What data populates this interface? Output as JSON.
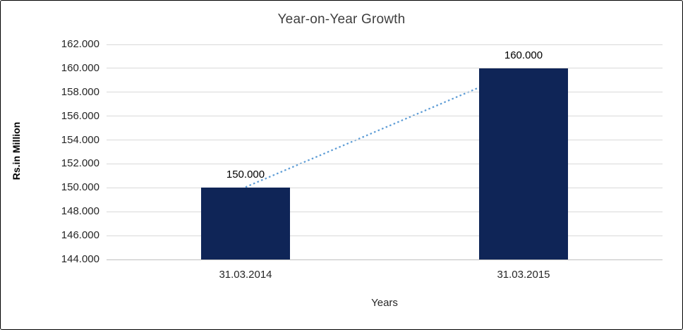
{
  "chart_data": {
    "type": "bar",
    "title": "Year-on-Year Growth",
    "xlabel": "Years",
    "ylabel": "Rs.in Million",
    "categories": [
      "31.03.2014",
      "31.03.2015"
    ],
    "values": [
      150000,
      160000
    ],
    "value_labels": [
      "150.000",
      "160.000"
    ],
    "ylim": [
      144000,
      162000
    ],
    "ytick_step": 2000,
    "yticks": [
      "162.000",
      "160.000",
      "158.000",
      "156.000",
      "154.000",
      "152.000",
      "150.000",
      "148.000",
      "146.000",
      "144.000"
    ],
    "grid": true,
    "legend": "none",
    "bar_color": "#0f2557",
    "trendline": {
      "type": "linear",
      "style": "dotted",
      "color": "#5b9bd5"
    }
  }
}
